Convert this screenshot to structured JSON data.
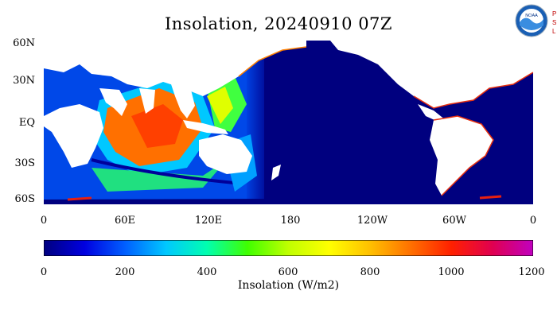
{
  "title": "Insolation, 20240910 07Z",
  "logo": {
    "noaa_text": "NOAA",
    "psl_letters": [
      "P",
      "S",
      "L"
    ]
  },
  "map": {
    "lat_labels": [
      "60N",
      "30N",
      "EQ",
      "30S",
      "60S"
    ],
    "lon_labels": [
      "0",
      "60E",
      "120E",
      "180",
      "120W",
      "60W",
      "0"
    ],
    "land_color": "#ffffff",
    "night_ocean_color": "#00007f",
    "coast_edge_color": "#e83010"
  },
  "colorbar": {
    "tick_labels": [
      "0",
      "200",
      "400",
      "600",
      "800",
      "1000",
      "1200"
    ],
    "title": "Insolation (W/m2)",
    "colors": [
      "#00007f",
      "#0000e0",
      "#0060ff",
      "#00c8ff",
      "#00ffb0",
      "#40ff00",
      "#c0ff00",
      "#ffff00",
      "#ffc000",
      "#ff7000",
      "#ff2000",
      "#e00050",
      "#c000c0"
    ]
  }
}
